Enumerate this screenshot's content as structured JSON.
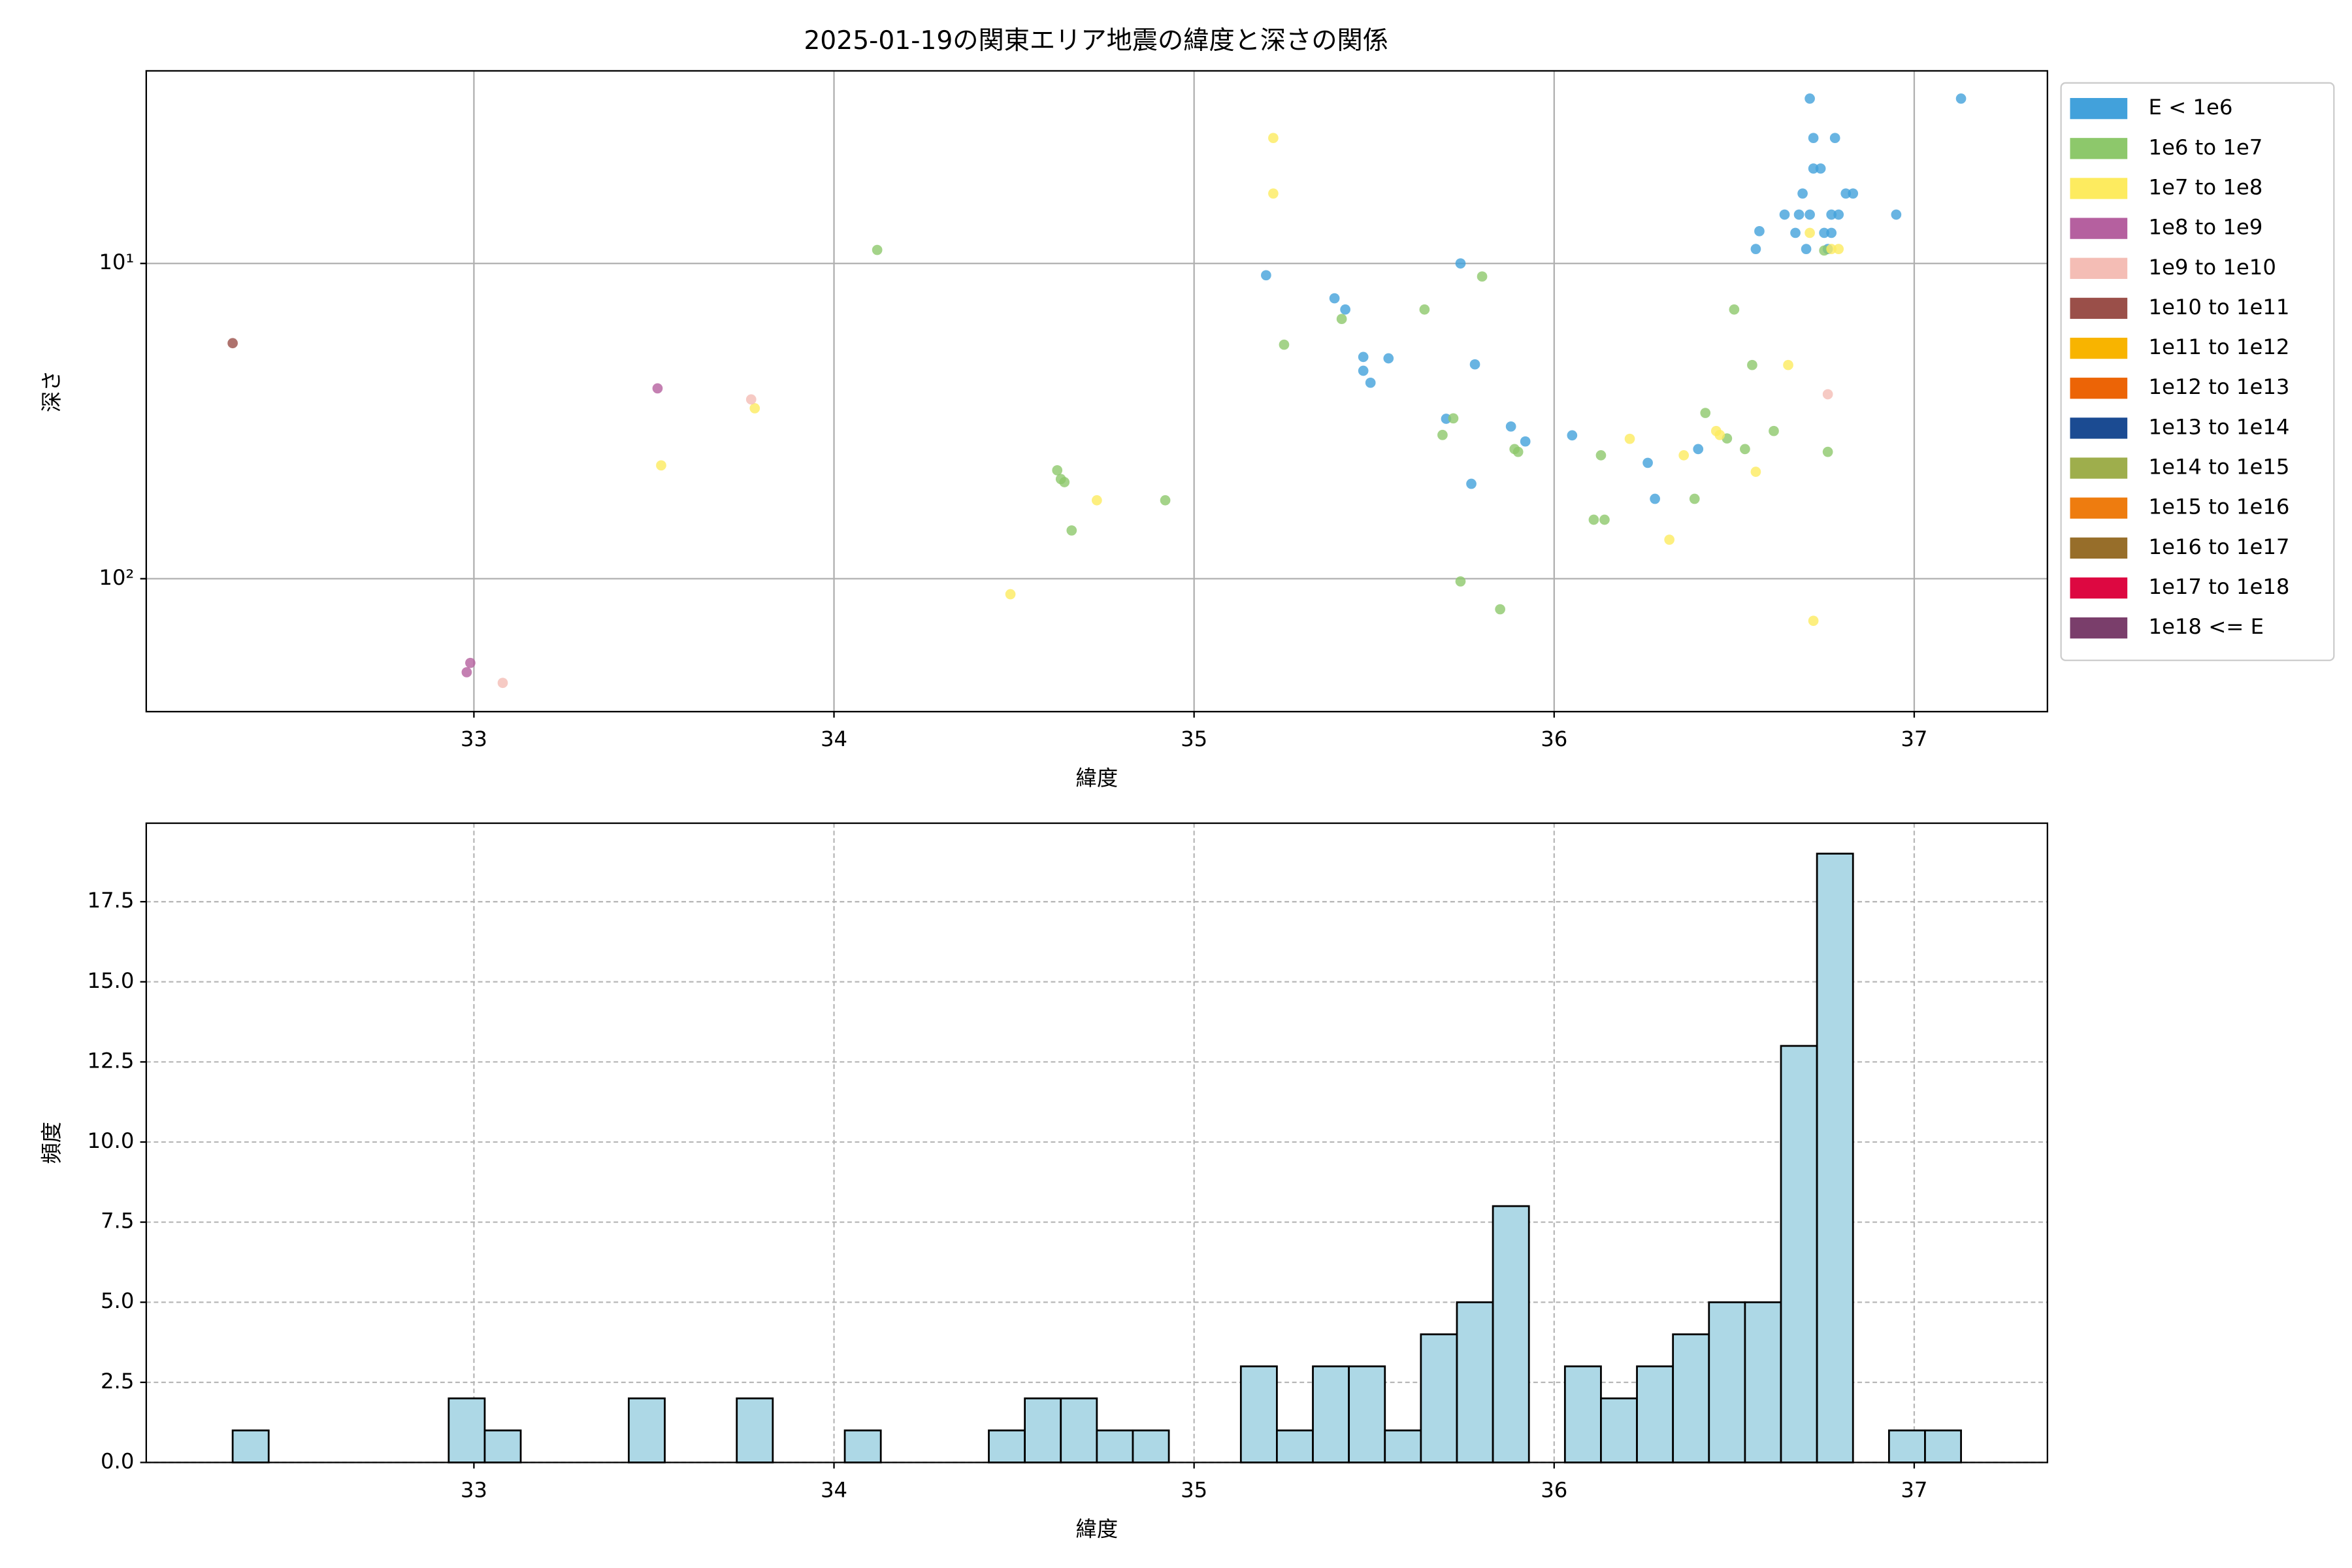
{
  "chart_data": [
    {
      "type": "scatter",
      "title": "2025-01-19の関東エリア地震の緯度と深さの関係",
      "xlabel": "緯度",
      "ylabel": "深さ",
      "xlim": [
        32.09,
        37.37
      ],
      "ylim": [
        2.45,
        264
      ],
      "yscale": "log",
      "invert_y": true,
      "grid": true,
      "legend": "outside-right",
      "xticks": [
        33,
        34,
        35,
        36,
        37
      ],
      "yticks": [
        {
          "value": 10,
          "label": "10¹"
        },
        {
          "value": 100,
          "label": "10²"
        }
      ],
      "series": [
        {
          "name": "E < 1e6",
          "color": "#42a1db",
          "x": [
            36.71,
            37.13,
            36.72,
            36.78,
            36.72,
            36.74,
            36.69,
            36.81,
            36.83,
            36.64,
            36.68,
            36.71,
            36.77,
            36.79,
            36.95,
            36.57,
            36.67,
            36.75,
            36.77,
            36.56,
            36.7,
            36.76,
            35.2,
            35.74,
            35.39,
            35.42,
            35.47,
            35.54,
            35.47,
            35.49,
            35.78,
            35.7,
            35.88,
            35.92,
            36.05,
            36.4,
            36.26,
            35.77,
            36.28
          ],
          "y": [
            3.0,
            3.0,
            4.0,
            4.0,
            5.0,
            5.0,
            6.0,
            6.0,
            6.0,
            7.0,
            7.0,
            7.0,
            7.0,
            7.0,
            7.0,
            7.9,
            8.0,
            8.0,
            8.0,
            9.0,
            9.0,
            9.0,
            10.9,
            10.0,
            12.9,
            14.0,
            19.8,
            20.0,
            21.9,
            23.9,
            20.9,
            31.1,
            32.9,
            36.7,
            35.1,
            38.8,
            42.9,
            50.0,
            55.8
          ]
        },
        {
          "name": "1e6 to 1e7",
          "color": "#8dc86b",
          "x": [
            34.12,
            35.8,
            35.25,
            35.41,
            35.64,
            36.5,
            35.72,
            35.69,
            36.42,
            36.48,
            36.53,
            36.61,
            36.55,
            36.76,
            35.89,
            35.9,
            36.13,
            36.39,
            34.62,
            34.63,
            34.64,
            34.66,
            34.92,
            36.11,
            36.14,
            35.74,
            35.85,
            36.75
          ],
          "y": [
            9.06,
            11.0,
            18.1,
            15.0,
            14.0,
            14.0,
            31.0,
            35.0,
            29.8,
            35.9,
            38.8,
            34.0,
            21.0,
            39.6,
            38.8,
            39.6,
            40.6,
            55.8,
            45.3,
            48.3,
            49.4,
            70.3,
            56.4,
            65.0,
            65.0,
            102,
            125,
            9.1
          ]
        },
        {
          "name": "1e7 to 1e8",
          "color": "#fdeb5f",
          "x": [
            35.22,
            35.22,
            36.71,
            36.77,
            36.79,
            36.65,
            36.45,
            36.46,
            36.21,
            36.36,
            36.56,
            33.78,
            33.52,
            34.73,
            36.32,
            34.49,
            36.72
          ],
          "y": [
            4.0,
            6.0,
            8.0,
            9.0,
            9.0,
            21.0,
            34.0,
            35.0,
            36.0,
            40.6,
            45.8,
            28.8,
            43.7,
            56.4,
            75.2,
            112,
            136
          ]
        },
        {
          "name": "1e8 to 1e9",
          "color": "#b5609f",
          "x": [
            33.51,
            32.99,
            32.98
          ],
          "y": [
            24.9,
            185,
            198
          ]
        },
        {
          "name": "1e9 to 1e10",
          "color": "#f4bdb5",
          "x": [
            33.77,
            36.76,
            33.08
          ],
          "y": [
            27.0,
            26.0,
            214
          ]
        },
        {
          "name": "1e10 to 1e11",
          "color": "#9a4f49",
          "x": [
            32.33
          ],
          "y": [
            17.9
          ]
        },
        {
          "name": "1e11 to 1e12",
          "color": "#f8b400",
          "x": [],
          "y": []
        },
        {
          "name": "1e12 to 1e13",
          "color": "#ec6406",
          "x": [],
          "y": []
        },
        {
          "name": "1e13 to 1e14",
          "color": "#1b4b92",
          "x": [],
          "y": []
        },
        {
          "name": "1e14 to 1e15",
          "color": "#9eae4c",
          "x": [],
          "y": []
        },
        {
          "name": "1e15 to 1e16",
          "color": "#ee7c0f",
          "x": [],
          "y": []
        },
        {
          "name": "1e16 to 1e17",
          "color": "#976e2a",
          "x": [],
          "y": []
        },
        {
          "name": "1e17 to 1e18",
          "color": "#dd0841",
          "x": [],
          "y": []
        },
        {
          "name": "1e18 <= E",
          "color": "#7a3e6b",
          "x": [],
          "y": []
        }
      ]
    },
    {
      "type": "histogram",
      "xlabel": "緯度",
      "ylabel": "頻度",
      "xlim": [
        32.09,
        37.37
      ],
      "ylim": [
        0,
        19.95
      ],
      "grid": true,
      "color": "#add8e6",
      "edgecolor": "#000000",
      "xticks": [
        33,
        34,
        35,
        36,
        37
      ],
      "yticks": [
        {
          "value": 0,
          "label": "0.0"
        },
        2.5,
        {
          "value": 5,
          "label": "5.0"
        },
        7.5,
        {
          "value": 10,
          "label": "10.0"
        },
        12.5,
        {
          "value": 15,
          "label": "15.0"
        },
        17.5
      ],
      "bins": [
        32.33,
        32.43,
        32.53,
        32.63,
        32.73,
        32.83,
        32.93,
        33.03,
        33.13,
        33.23,
        33.33,
        33.43,
        33.53,
        33.63,
        33.73,
        33.83,
        33.93,
        34.03,
        34.13,
        34.23,
        34.33,
        34.43,
        34.53,
        34.63,
        34.73,
        34.83,
        34.93,
        35.03,
        35.13,
        35.23,
        35.33,
        35.43,
        35.53,
        35.63,
        35.73,
        35.83,
        35.93,
        36.03,
        36.13,
        36.23,
        36.33,
        36.43,
        36.53,
        36.63,
        36.73,
        36.83,
        36.93,
        37.03,
        37.13
      ],
      "counts": [
        1,
        0,
        0,
        0,
        0,
        0,
        2,
        1,
        0,
        0,
        0,
        2,
        0,
        0,
        2,
        0,
        0,
        1,
        0,
        0,
        0,
        1,
        2,
        2,
        1,
        1,
        0,
        0,
        3,
        1,
        3,
        3,
        1,
        4,
        5,
        8,
        0,
        3,
        2,
        3,
        4,
        5,
        5,
        13,
        19,
        0,
        1,
        1
      ]
    }
  ]
}
